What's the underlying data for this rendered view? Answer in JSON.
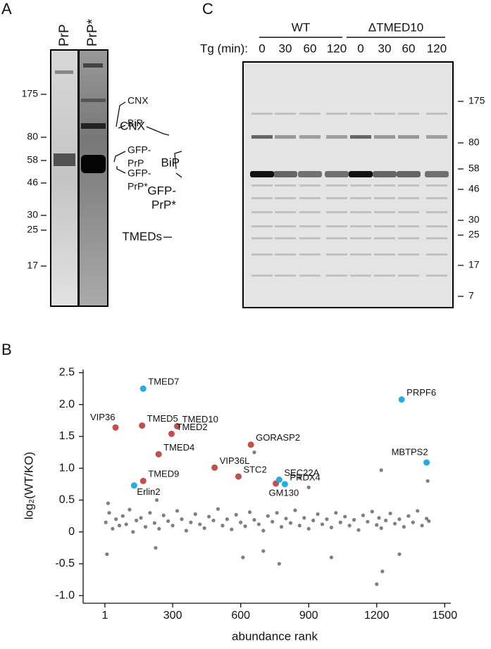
{
  "panel_a": {
    "label": "A",
    "lanes": [
      "PrP",
      "PrP*"
    ],
    "markers": [
      175,
      80,
      58,
      46,
      30,
      25,
      17
    ],
    "annotations": [
      "CNX",
      "BiP",
      "GFP-",
      "PrP",
      "GFP-",
      "PrP*"
    ]
  },
  "panel_c": {
    "label": "C",
    "groups": [
      "WT",
      "ΔTMED10"
    ],
    "tg_label": "Tg (min):",
    "lanes": [
      "0",
      "30",
      "60",
      "120",
      "0",
      "30",
      "60",
      "120"
    ],
    "markers": [
      175,
      80,
      58,
      46,
      30,
      25,
      17,
      7
    ],
    "annotations": [
      "CNX",
      "BiP",
      "GFP-",
      "PrP*",
      "TMEDs"
    ]
  },
  "chart_data": {
    "type": "scatter",
    "panel_label": "B",
    "x_label": "abundance rank",
    "y_label": "log₂(WT/KO)",
    "xlim": [
      -95,
      1527
    ],
    "xticks": [
      1,
      300,
      600,
      900,
      1200,
      1500
    ],
    "ylim": [
      -1.12,
      2.55
    ],
    "yticks": [
      {
        "value": -1,
        "label": "-1.0"
      },
      -0.5,
      0,
      0.5,
      {
        "value": 1,
        "label": "1.0"
      },
      1.5,
      {
        "value": 2,
        "label": "2.0"
      },
      2.5
    ],
    "series": [
      {
        "color": "#7f7f7f",
        "x": [
          5,
          20,
          35,
          50,
          65,
          80,
          95,
          110,
          125,
          140,
          160,
          180,
          200,
          220,
          240,
          260,
          280,
          300,
          320,
          340,
          360,
          380,
          400,
          420,
          440,
          460,
          480,
          500,
          520,
          540,
          560,
          580,
          600,
          620,
          640,
          660,
          680,
          700,
          720,
          740,
          760,
          780,
          800,
          820,
          840,
          860,
          880,
          900,
          920,
          940,
          960,
          980,
          1000,
          1020,
          1040,
          1060,
          1080,
          1100,
          1120,
          1140,
          1160,
          1180,
          1200,
          1210,
          1220,
          1240,
          1260,
          1280,
          1300,
          1320,
          1340,
          1360,
          1380,
          1400,
          1420,
          1430,
          10,
          15,
          225,
          230,
          610,
          660,
          700,
          770,
          860,
          900,
          1000,
          1200,
          1225,
          1220,
          1300,
          1425
        ],
        "values": [
          0.15,
          0.3,
          0.05,
          0.2,
          0.1,
          0.25,
          0.12,
          0.35,
          0.0,
          0.18,
          0.22,
          0.08,
          0.3,
          0.14,
          0.05,
          0.26,
          0.17,
          0.1,
          0.33,
          0.2,
          0.02,
          0.15,
          0.28,
          0.12,
          0.06,
          0.24,
          0.18,
          0.36,
          0.1,
          0.2,
          0.04,
          0.27,
          0.15,
          0.09,
          0.31,
          0.19,
          0.12,
          0.02,
          0.25,
          0.16,
          0.3,
          0.08,
          0.21,
          0.14,
          0.34,
          0.1,
          0.22,
          0.05,
          0.18,
          0.28,
          0.12,
          0.2,
          0.07,
          0.3,
          0.15,
          0.24,
          0.1,
          0.19,
          0.03,
          0.26,
          0.16,
          0.32,
          0.11,
          0.22,
          0.06,
          0.18,
          0.29,
          0.13,
          0.2,
          0.08,
          0.25,
          0.15,
          0.33,
          0.1,
          0.21,
          0.17,
          -0.35,
          0.45,
          -0.25,
          0.5,
          -0.4,
          1.25,
          -0.3,
          -0.5,
          0.85,
          0.7,
          -0.4,
          -0.82,
          -0.62,
          0.97,
          -0.35,
          0.8
        ]
      },
      {
        "color": "#c0504d",
        "x": [
          48,
          165,
          320,
          295,
          645,
          238,
          485,
          590,
          170,
          755
        ],
        "values": [
          1.64,
          1.67,
          1.66,
          1.54,
          1.37,
          1.22,
          1.01,
          0.87,
          0.8,
          0.76
        ],
        "labels": [
          "VIP36",
          "TMED5",
          "TMED10",
          "TMED2",
          "GORASP2",
          "TMED4",
          "VIP36L",
          "STC2",
          "TMED9",
          "GM130"
        ]
      },
      {
        "color": "#29abe2",
        "x": [
          170,
          1310,
          1420,
          130,
          770,
          795
        ],
        "values": [
          2.25,
          2.08,
          1.09,
          0.73,
          0.82,
          0.75
        ],
        "labels": [
          "TMED7",
          "PRPF6",
          "MBTPS2",
          "Erlin2",
          "SEC22A",
          "PRDX4"
        ]
      }
    ]
  }
}
